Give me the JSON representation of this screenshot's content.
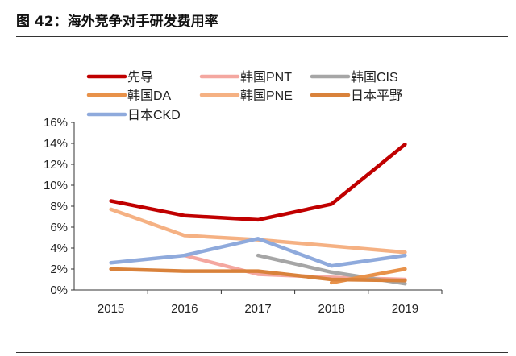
{
  "title": "图 42：海外竞争对手研发费用率",
  "chart_data": {
    "type": "line",
    "title": "",
    "xlabel": "",
    "ylabel": "",
    "categories": [
      "2015",
      "2016",
      "2017",
      "2018",
      "2019"
    ],
    "ylim": [
      0,
      16
    ],
    "yticks": [
      "0%",
      "2%",
      "4%",
      "6%",
      "8%",
      "10%",
      "12%",
      "14%",
      "16%"
    ],
    "grid": false,
    "legend": "top",
    "series": [
      {
        "name": "先导",
        "color": "#c00000",
        "values": [
          8.5,
          7.1,
          6.7,
          8.2,
          13.9
        ]
      },
      {
        "name": "韩国PNT",
        "color": "#f4a7a0",
        "values": [
          null,
          3.3,
          1.5,
          1.2,
          1.0
        ]
      },
      {
        "name": "韩国CIS",
        "color": "#a6a6a6",
        "values": [
          null,
          null,
          3.3,
          1.7,
          0.6
        ]
      },
      {
        "name": "韩国DA",
        "color": "#e8924a",
        "values": [
          null,
          null,
          null,
          0.7,
          2.0
        ]
      },
      {
        "name": "韩国PNE",
        "color": "#f5b183",
        "values": [
          7.7,
          5.2,
          4.8,
          4.2,
          3.6
        ]
      },
      {
        "name": "日本平野",
        "color": "#d9823b",
        "values": [
          2.0,
          1.8,
          1.8,
          1.0,
          0.9
        ]
      },
      {
        "name": "日本CKD",
        "color": "#8faadc",
        "values": [
          2.6,
          3.3,
          4.9,
          2.3,
          3.3
        ]
      }
    ]
  }
}
